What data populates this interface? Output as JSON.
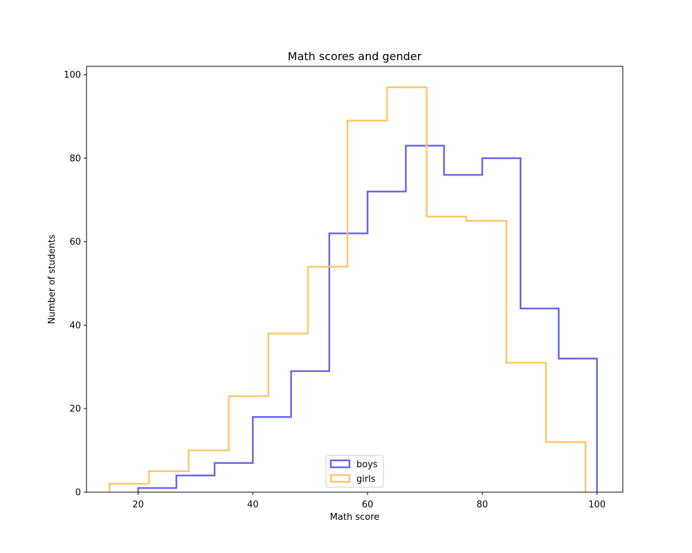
{
  "chart_data": {
    "type": "histogram-step",
    "title": "Math scores and gender",
    "xlabel": "Math score",
    "ylabel": "Number of students",
    "xlim": [
      11,
      104.5
    ],
    "ylim": [
      0,
      102
    ],
    "xticks": [
      "20",
      "40",
      "60",
      "80",
      "100"
    ],
    "xtick_values": [
      20,
      40,
      60,
      80,
      100
    ],
    "yticks": [
      "0",
      "20",
      "40",
      "60",
      "80",
      "100"
    ],
    "ytick_values": [
      0,
      20,
      40,
      60,
      80,
      100
    ],
    "grid": false,
    "legend_position": "bottom-center",
    "series": [
      {
        "name": "boys",
        "color": "#6666ee",
        "bin_edges": [
          20,
          26.67,
          33.33,
          40,
          46.67,
          53.33,
          60,
          66.67,
          73.33,
          80,
          86.67,
          93.33,
          100
        ],
        "counts": [
          1,
          4,
          7,
          18,
          29,
          62,
          72,
          83,
          76,
          80,
          44,
          32
        ]
      },
      {
        "name": "girls",
        "color": "#fdc666",
        "bin_edges": [
          15,
          21.9,
          28.8,
          35.8,
          42.7,
          49.6,
          56.5,
          63.4,
          70.3,
          77.2,
          84.2,
          91.1,
          98
        ],
        "counts": [
          2,
          5,
          10,
          23,
          38,
          54,
          89,
          97,
          66,
          65,
          31,
          12
        ]
      }
    ]
  }
}
